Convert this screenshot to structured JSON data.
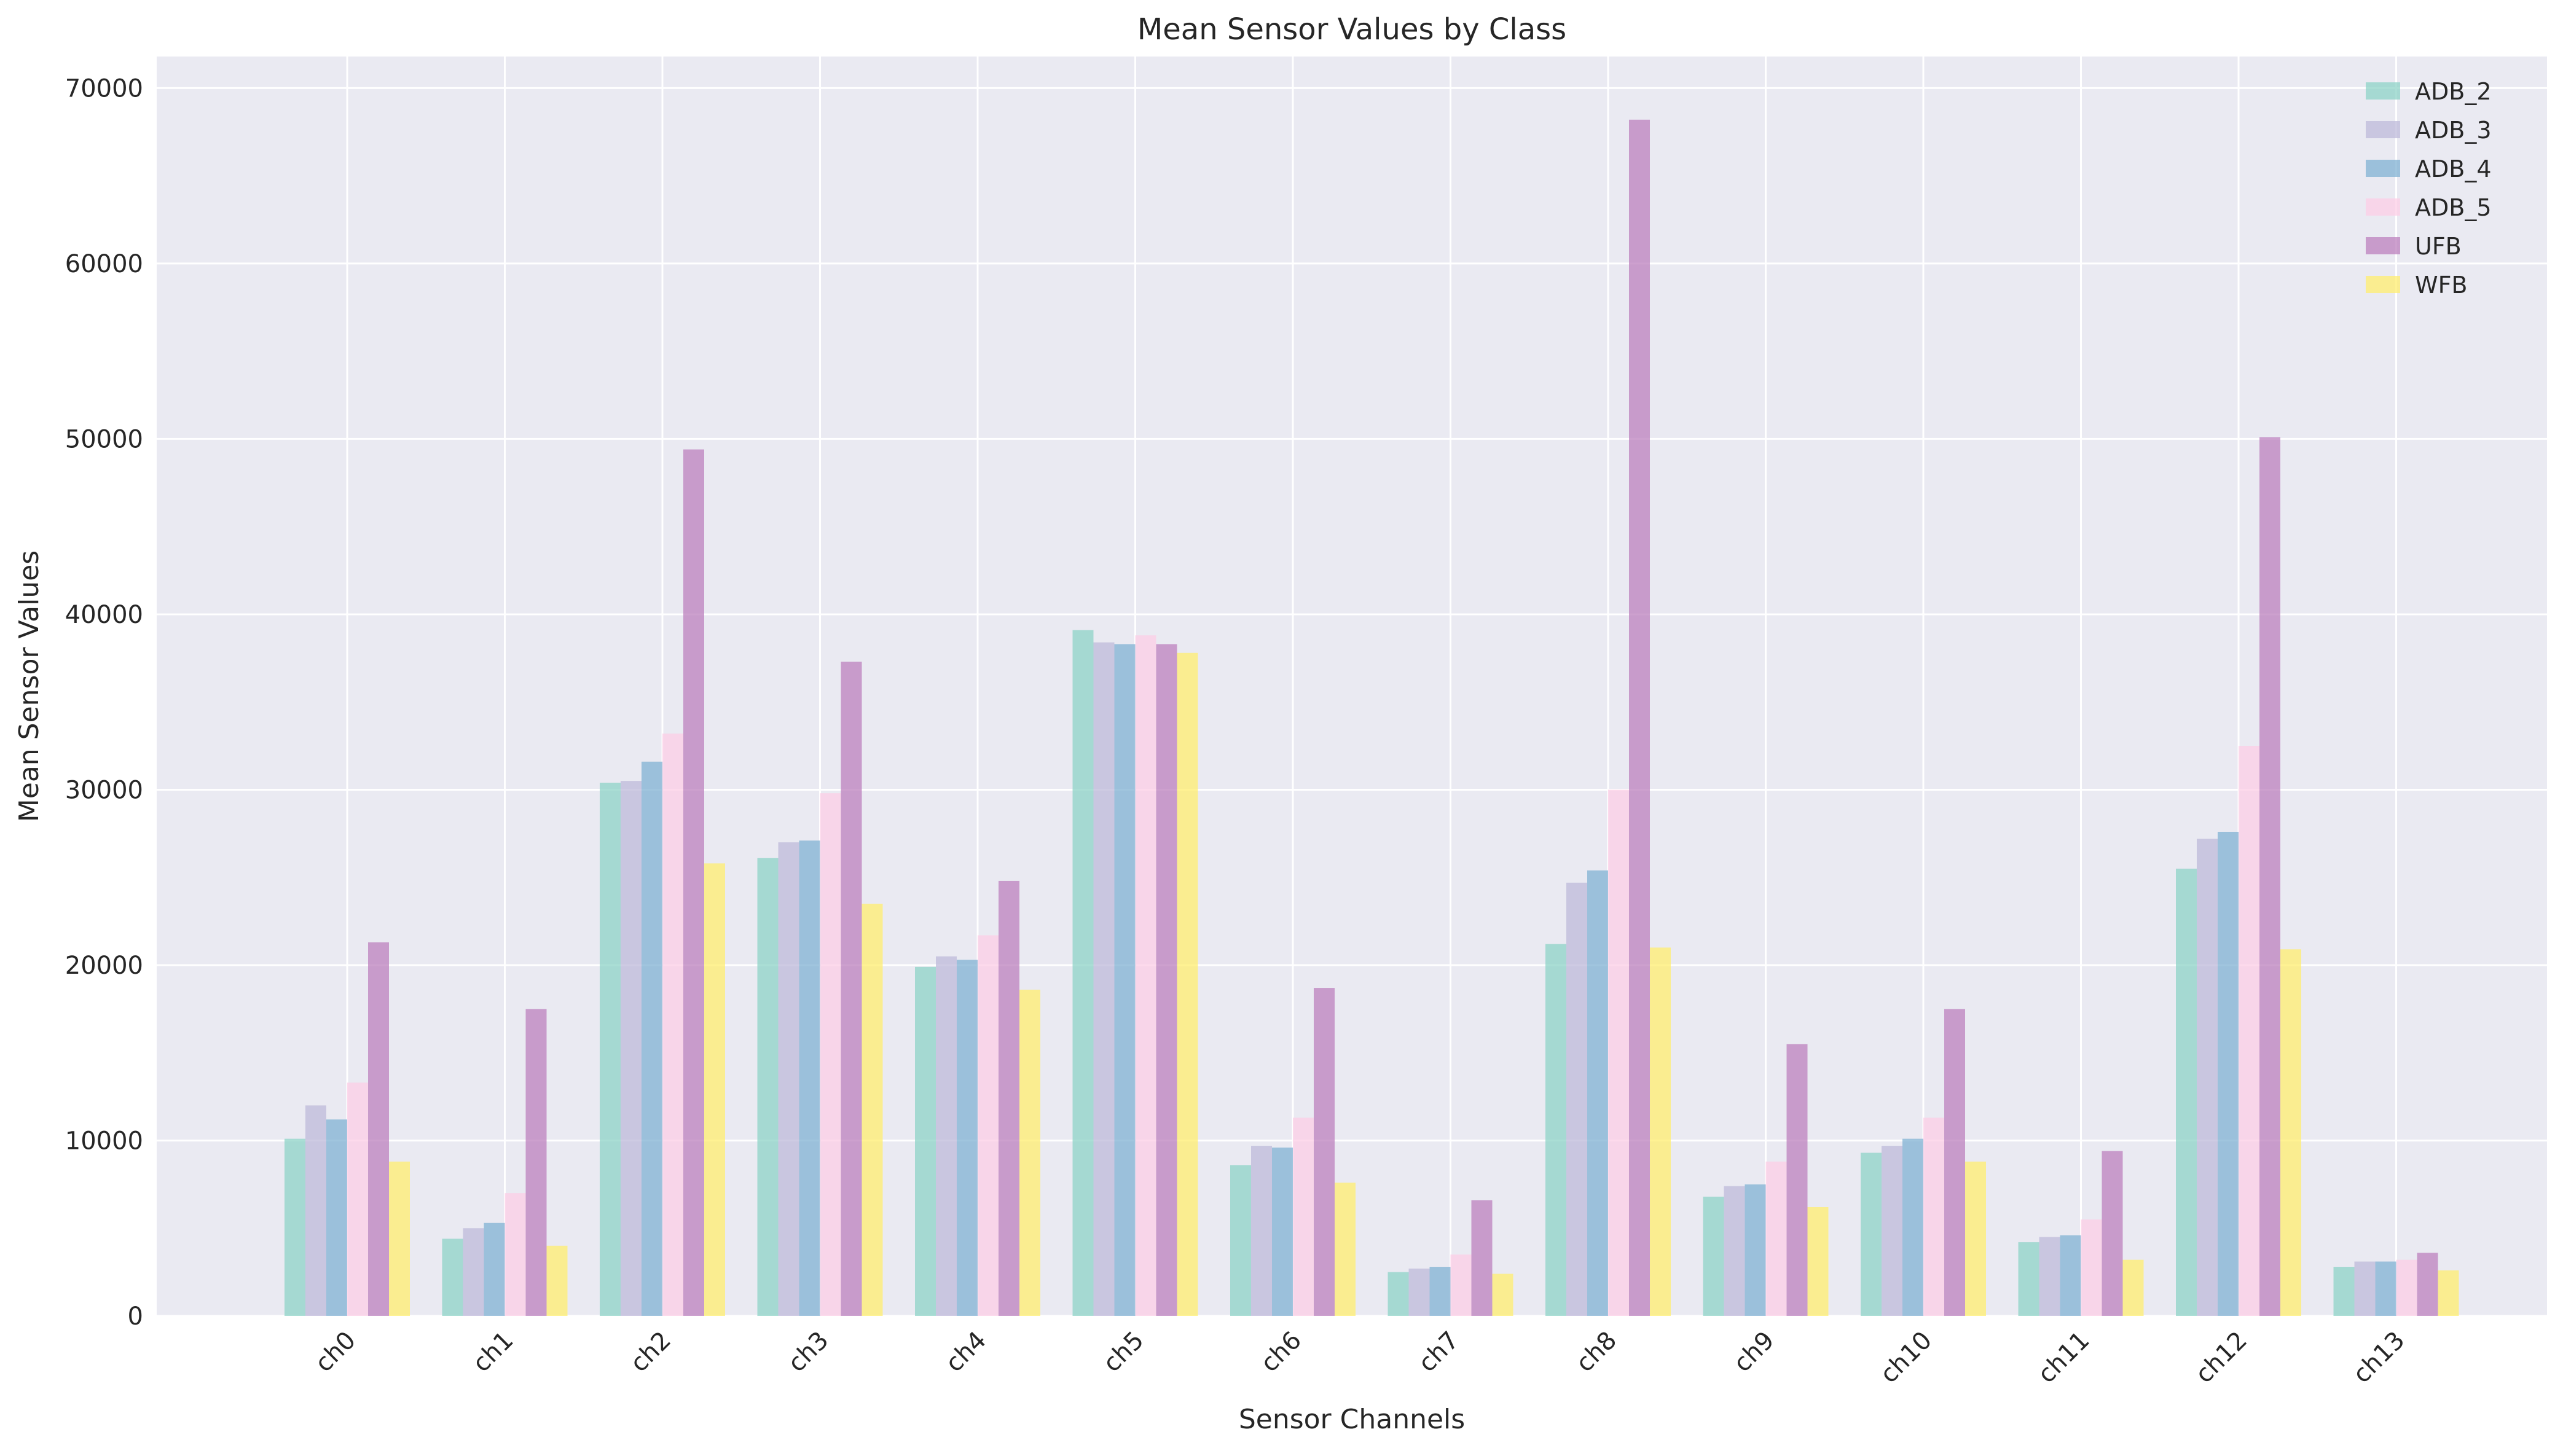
{
  "chart_data": {
    "type": "bar",
    "title": "Mean Sensor Values by Class",
    "xlabel": "Sensor Channels",
    "ylabel": "Mean Sensor Values",
    "categories": [
      "ch0",
      "ch1",
      "ch2",
      "ch3",
      "ch4",
      "ch5",
      "ch6",
      "ch7",
      "ch8",
      "ch9",
      "ch10",
      "ch11",
      "ch12",
      "ch13"
    ],
    "ylim": [
      0,
      71800
    ],
    "yticks": [
      0,
      10000,
      20000,
      30000,
      40000,
      50000,
      60000,
      70000
    ],
    "grid": true,
    "legend_position": "top-right",
    "series": [
      {
        "name": "ADB_2",
        "color": "#8dd3c7",
        "values": [
          10100,
          4400,
          30400,
          26100,
          19900,
          39100,
          8600,
          2500,
          21200,
          6800,
          9300,
          4200,
          25500,
          2800
        ]
      },
      {
        "name": "ADB_3",
        "color": "#bebada",
        "values": [
          12000,
          5000,
          30500,
          27000,
          20500,
          38400,
          9700,
          2700,
          24700,
          7400,
          9700,
          4500,
          27200,
          3100
        ]
      },
      {
        "name": "ADB_4",
        "color": "#80b1d3",
        "values": [
          11200,
          5300,
          31600,
          27100,
          20300,
          38300,
          9600,
          2800,
          25400,
          7500,
          10100,
          4600,
          27600,
          3100
        ]
      },
      {
        "name": "ADB_5",
        "color": "#fccde5",
        "values": [
          13300,
          7000,
          33200,
          29800,
          21700,
          38800,
          11300,
          3500,
          30000,
          8800,
          11300,
          5500,
          32500,
          3200
        ]
      },
      {
        "name": "UFB",
        "color": "#bc80bd",
        "values": [
          21300,
          17500,
          49400,
          37300,
          24800,
          38300,
          18700,
          6600,
          68200,
          15500,
          17500,
          9400,
          50100,
          3600
        ]
      },
      {
        "name": "WFB",
        "color": "#ffed6f",
        "values": [
          8800,
          4000,
          25800,
          23500,
          18600,
          37800,
          7600,
          2400,
          21000,
          6200,
          8800,
          3200,
          20900,
          2600
        ]
      }
    ]
  }
}
